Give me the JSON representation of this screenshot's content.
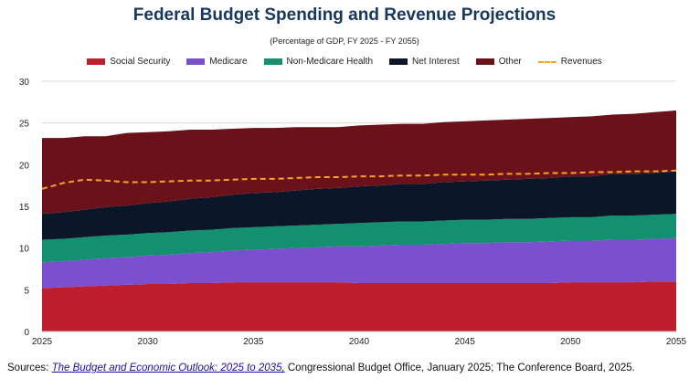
{
  "chart_data": {
    "type": "area",
    "stacked": true,
    "title": "Federal Budget Spending and Revenue Projections",
    "subtitle": "(Percentage of GDP, FY 2025 - FY 2055)",
    "x": [
      2025,
      2026,
      2027,
      2028,
      2029,
      2030,
      2031,
      2032,
      2033,
      2034,
      2035,
      2036,
      2037,
      2038,
      2039,
      2040,
      2041,
      2042,
      2043,
      2044,
      2045,
      2046,
      2047,
      2048,
      2049,
      2050,
      2051,
      2052,
      2053,
      2054,
      2055
    ],
    "xticks": [
      "2025",
      "2030",
      "2035",
      "2040",
      "2045",
      "2050",
      "2055"
    ],
    "yticks": [
      "0",
      "5",
      "10",
      "15",
      "20",
      "25",
      "30"
    ],
    "ylim": [
      0,
      30
    ],
    "xlim": [
      2025,
      2055
    ],
    "grid": "horizontal",
    "legend_position": "top",
    "series": [
      {
        "name": "Social Security",
        "color": "#be1e2d",
        "values": [
          5.2,
          5.3,
          5.4,
          5.5,
          5.6,
          5.7,
          5.7,
          5.8,
          5.8,
          5.9,
          5.9,
          5.9,
          5.9,
          5.9,
          5.9,
          5.8,
          5.8,
          5.8,
          5.8,
          5.8,
          5.8,
          5.8,
          5.8,
          5.8,
          5.8,
          5.9,
          5.9,
          5.9,
          5.9,
          6.0,
          6.0
        ]
      },
      {
        "name": "Medicare",
        "color": "#7b4fce",
        "values": [
          3.1,
          3.1,
          3.2,
          3.3,
          3.3,
          3.4,
          3.5,
          3.6,
          3.7,
          3.8,
          3.9,
          4.0,
          4.1,
          4.2,
          4.3,
          4.4,
          4.5,
          4.6,
          4.6,
          4.7,
          4.8,
          4.8,
          4.9,
          4.9,
          5.0,
          5.0,
          5.0,
          5.1,
          5.1,
          5.1,
          5.2
        ]
      },
      {
        "name": "Non-Medicare Health",
        "color": "#12906f",
        "values": [
          2.7,
          2.7,
          2.7,
          2.7,
          2.7,
          2.7,
          2.7,
          2.7,
          2.7,
          2.7,
          2.7,
          2.7,
          2.7,
          2.7,
          2.7,
          2.8,
          2.8,
          2.8,
          2.8,
          2.8,
          2.8,
          2.8,
          2.8,
          2.8,
          2.8,
          2.8,
          2.8,
          2.9,
          2.9,
          2.9,
          2.9
        ]
      },
      {
        "name": "Net Interest",
        "color": "#0b1628",
        "values": [
          3.1,
          3.2,
          3.3,
          3.4,
          3.5,
          3.6,
          3.7,
          3.8,
          3.9,
          4.0,
          4.1,
          4.1,
          4.2,
          4.3,
          4.3,
          4.4,
          4.4,
          4.5,
          4.5,
          4.6,
          4.6,
          4.7,
          4.7,
          4.8,
          4.8,
          4.9,
          4.9,
          5.0,
          5.0,
          5.0,
          5.1
        ]
      },
      {
        "name": "Other",
        "color": "#6b1119",
        "values": [
          9.1,
          8.9,
          8.8,
          8.5,
          8.7,
          8.5,
          8.4,
          8.3,
          8.1,
          7.9,
          7.8,
          7.7,
          7.6,
          7.4,
          7.3,
          7.3,
          7.3,
          7.2,
          7.2,
          7.2,
          7.2,
          7.2,
          7.2,
          7.2,
          7.2,
          7.1,
          7.2,
          7.1,
          7.2,
          7.3,
          7.3
        ]
      }
    ],
    "line_series": {
      "name": "Revenues",
      "color": "#f5a623",
      "style": "dashed",
      "values": [
        17.1,
        17.8,
        18.2,
        18.1,
        17.9,
        17.9,
        18.0,
        18.1,
        18.1,
        18.2,
        18.3,
        18.3,
        18.4,
        18.5,
        18.5,
        18.6,
        18.6,
        18.7,
        18.7,
        18.8,
        18.8,
        18.8,
        18.9,
        18.9,
        19.0,
        19.0,
        19.1,
        19.1,
        19.2,
        19.2,
        19.3
      ]
    }
  },
  "sources": {
    "prefix": "Sources: ",
    "link_text": "The Budget and Economic Outlook: 2025 to 2035,",
    "rest": " Congressional Budget Office, January 2025; The Conference Board, 2025."
  }
}
